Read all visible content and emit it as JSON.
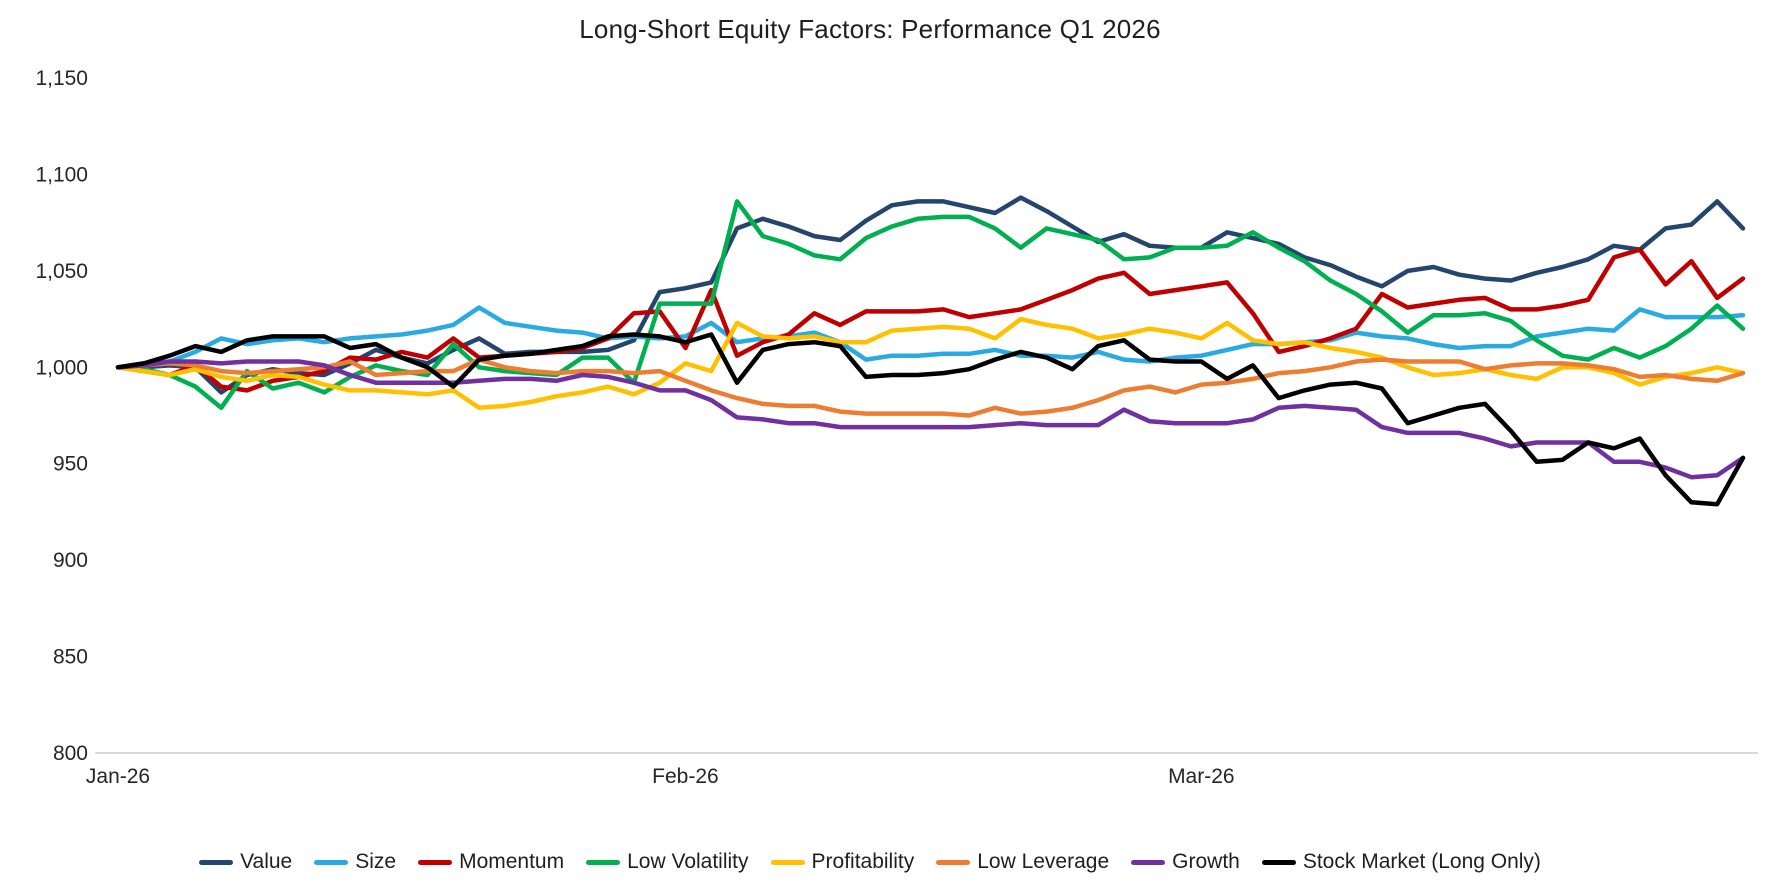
{
  "title": "Long-Short Equity Factors: Performance Q1 2026",
  "chart_data": {
    "type": "line",
    "title": "Long-Short Equity Factors: Performance Q1 2026",
    "xlabel": "",
    "ylabel": "",
    "x_description": "Daily index values, business days of Q1 2026 (64 points, Jan 1 - Mar 31 2026)",
    "x_tick_labels": [
      "Jan-26",
      "Feb-26",
      "Mar-26"
    ],
    "x_tick_day_index": [
      0,
      22,
      42
    ],
    "total_points": 64,
    "ylim": [
      800,
      1150
    ],
    "y_tick_step": 50,
    "y_tick_labels": [
      "800",
      "850",
      "900",
      "950",
      "1,000",
      "1,050",
      "1,100",
      "1,150"
    ],
    "grid": false,
    "legend_position": "bottom",
    "axis_line_color": "#d9d9d9",
    "text_color": "#262626",
    "base_value": 1000,
    "series": [
      {
        "name": "Value",
        "color": "#24466E",
        "values": [
          1000,
          1000,
          1001,
          1000,
          987,
          996,
          999,
          997,
          996,
          1002,
          1009,
          1005,
          1002,
          1009,
          1015,
          1007,
          1008,
          1008,
          1008,
          1009,
          1014,
          1039,
          1041,
          1044,
          1072,
          1077,
          1073,
          1068,
          1066,
          1076,
          1084,
          1086,
          1086,
          1083,
          1080,
          1088,
          1081,
          1073,
          1065,
          1069,
          1063,
          1062,
          1062,
          1070,
          1067,
          1064,
          1057,
          1053,
          1047,
          1042,
          1050,
          1052,
          1048,
          1046,
          1045,
          1049,
          1052,
          1056,
          1063,
          1061,
          1072,
          1074,
          1086,
          1072
        ]
      },
      {
        "name": "Size",
        "color": "#29ABE2",
        "values": [
          1000,
          1002,
          1003,
          1008,
          1015,
          1012,
          1014,
          1015,
          1013,
          1015,
          1016,
          1017,
          1019,
          1022,
          1031,
          1023,
          1021,
          1019,
          1018,
          1015,
          1016,
          1015,
          1016,
          1023,
          1013,
          1015,
          1016,
          1018,
          1013,
          1004,
          1006,
          1006,
          1007,
          1007,
          1009,
          1006,
          1006,
          1005,
          1008,
          1004,
          1003,
          1005,
          1006,
          1009,
          1012,
          1012,
          1013,
          1014,
          1018,
          1016,
          1015,
          1012,
          1010,
          1011,
          1011,
          1016,
          1018,
          1020,
          1019,
          1030,
          1026,
          1026,
          1026,
          1027
        ]
      },
      {
        "name": "Momentum",
        "color": "#C00000",
        "values": [
          1000,
          998,
          996,
          1001,
          990,
          988,
          993,
          995,
          998,
          1005,
          1004,
          1008,
          1005,
          1015,
          1005,
          1006,
          1007,
          1008,
          1010,
          1015,
          1028,
          1029,
          1010,
          1040,
          1006,
          1013,
          1017,
          1028,
          1022,
          1029,
          1029,
          1029,
          1030,
          1026,
          1028,
          1030,
          1035,
          1040,
          1046,
          1049,
          1038,
          1040,
          1042,
          1044,
          1028,
          1008,
          1011,
          1015,
          1020,
          1038,
          1031,
          1033,
          1035,
          1036,
          1030,
          1030,
          1032,
          1035,
          1057,
          1061,
          1043,
          1055,
          1036,
          1046
        ]
      },
      {
        "name": "Low Volatility",
        "color": "#00B050",
        "values": [
          1000,
          999,
          996,
          990,
          979,
          998,
          989,
          992,
          987,
          995,
          1001,
          998,
          996,
          1012,
          1000,
          998,
          997,
          996,
          1005,
          1005,
          992,
          1033,
          1033,
          1033,
          1086,
          1068,
          1064,
          1058,
          1056,
          1067,
          1073,
          1077,
          1078,
          1078,
          1072,
          1062,
          1072,
          1069,
          1066,
          1056,
          1057,
          1062,
          1062,
          1063,
          1070,
          1062,
          1055,
          1045,
          1038,
          1029,
          1018,
          1027,
          1027,
          1028,
          1024,
          1014,
          1006,
          1004,
          1010,
          1005,
          1011,
          1020,
          1032,
          1020
        ]
      },
      {
        "name": "Profitability",
        "color": "#FFC000",
        "values": [
          1000,
          998,
          996,
          999,
          995,
          993,
          996,
          995,
          991,
          988,
          988,
          987,
          986,
          988,
          979,
          980,
          982,
          985,
          987,
          990,
          986,
          992,
          1002,
          998,
          1023,
          1016,
          1015,
          1016,
          1013,
          1013,
          1019,
          1020,
          1021,
          1020,
          1015,
          1025,
          1022,
          1020,
          1015,
          1017,
          1020,
          1018,
          1015,
          1023,
          1014,
          1012,
          1013,
          1010,
          1008,
          1005,
          1000,
          996,
          997,
          999,
          996,
          994,
          1000,
          1000,
          997,
          991,
          995,
          997,
          1000,
          997
        ]
      },
      {
        "name": "Low Leverage",
        "color": "#ED7D31",
        "values": [
          1000,
          1001,
          1002,
          1001,
          998,
          997,
          998,
          999,
          1000,
          1003,
          996,
          997,
          998,
          998,
          1004,
          1000,
          998,
          997,
          998,
          998,
          997,
          998,
          993,
          988,
          984,
          981,
          980,
          980,
          977,
          976,
          976,
          976,
          976,
          975,
          979,
          976,
          977,
          979,
          983,
          988,
          990,
          987,
          991,
          992,
          994,
          997,
          998,
          1000,
          1003,
          1004,
          1003,
          1003,
          1003,
          999,
          1001,
          1002,
          1002,
          1001,
          999,
          995,
          996,
          994,
          993,
          997
        ]
      },
      {
        "name": "Growth",
        "color": "#7030A0",
        "values": [
          1000,
          1001,
          1003,
          1003,
          1002,
          1003,
          1003,
          1003,
          1001,
          996,
          992,
          992,
          992,
          992,
          993,
          994,
          994,
          993,
          996,
          995,
          992,
          988,
          988,
          983,
          974,
          973,
          971,
          971,
          969,
          969,
          969,
          969,
          969,
          969,
          970,
          971,
          970,
          970,
          970,
          978,
          972,
          971,
          971,
          971,
          973,
          979,
          980,
          979,
          978,
          969,
          966,
          966,
          966,
          963,
          959,
          961,
          961,
          961,
          951,
          951,
          948,
          943,
          944,
          953
        ]
      },
      {
        "name": "Stock Market (Long Only)",
        "color": "#000000",
        "values": [
          1000,
          1002,
          1006,
          1011,
          1008,
          1014,
          1016,
          1016,
          1016,
          1010,
          1012,
          1005,
          1000,
          990,
          1004,
          1006,
          1007,
          1009,
          1011,
          1016,
          1017,
          1016,
          1013,
          1017,
          992,
          1009,
          1012,
          1013,
          1011,
          995,
          996,
          996,
          997,
          999,
          1004,
          1008,
          1005,
          999,
          1011,
          1014,
          1004,
          1003,
          1003,
          994,
          1001,
          984,
          988,
          991,
          992,
          989,
          971,
          975,
          979,
          981,
          967,
          951,
          952,
          961,
          958,
          963,
          944,
          930,
          929,
          953
        ]
      }
    ]
  }
}
